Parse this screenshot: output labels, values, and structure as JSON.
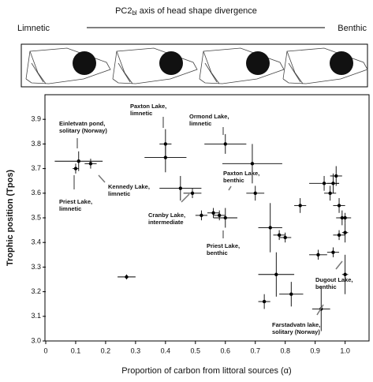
{
  "header": {
    "axis_label_main": "PC2",
    "axis_label_sub": "bl",
    "axis_label_rest": "axis of head shape divergence",
    "left_label": "Limnetic",
    "right_label": "Benthic"
  },
  "chart_data": {
    "type": "scatter",
    "xlabel": "Proportion of carbon from littoral sources (α)",
    "ylabel": "Trophic position (Tpos)",
    "xlim": [
      0,
      1.08
    ],
    "ylim": [
      3.0,
      4.0
    ],
    "xticks": [
      0,
      0.1,
      0.2,
      0.3,
      0.4,
      0.5,
      0.6,
      0.7,
      0.8,
      0.9,
      {
        "value": 1,
        "label": "1.0"
      }
    ],
    "yticks": [
      {
        "value": 3,
        "label": "3.0"
      },
      3.1,
      3.2,
      3.3,
      3.4,
      3.5,
      3.6,
      3.7,
      3.8,
      3.9
    ],
    "color": "#000000",
    "series": [
      {
        "x": [
          0.1,
          0.11,
          0.15,
          0.27,
          0.4,
          0.4,
          0.45,
          0.49,
          0.52,
          0.56,
          0.58,
          0.6,
          0.6,
          0.69,
          0.7,
          0.75,
          0.77,
          0.73,
          0.82,
          0.78,
          0.8,
          0.85,
          0.92,
          0.91,
          0.93,
          0.95,
          0.96,
          0.97,
          0.96,
          0.98,
          0.99,
          1.0,
          1.0,
          1.0,
          0.98
        ],
        "values": [
          3.7,
          3.73,
          3.72,
          3.26,
          3.8,
          3.745,
          3.62,
          3.6,
          3.51,
          3.52,
          3.51,
          3.5,
          3.8,
          3.72,
          3.6,
          3.46,
          3.27,
          3.16,
          3.19,
          3.43,
          3.42,
          3.55,
          3.13,
          3.35,
          3.64,
          3.6,
          3.64,
          3.67,
          3.36,
          3.55,
          3.5,
          3.44,
          3.27,
          3.5,
          3.43
        ],
        "xerr": [
          0.01,
          0.08,
          0.02,
          0.03,
          0.02,
          0.07,
          0.07,
          0.03,
          0.02,
          0.02,
          0.02,
          0.04,
          0.07,
          0.1,
          0.03,
          0.04,
          0.06,
          0.02,
          0.04,
          0.02,
          0.02,
          0.02,
          0.03,
          0.03,
          0.05,
          0.02,
          0.02,
          0.02,
          0.02,
          0.02,
          0.02,
          0.01,
          0.01,
          0.02,
          0.02
        ],
        "yerr": [
          0.02,
          0.04,
          0.02,
          0.01,
          0.06,
          0.06,
          0.05,
          0.02,
          0.02,
          0.02,
          0.02,
          0.04,
          0.04,
          0.08,
          0.03,
          0.1,
          0.09,
          0.03,
          0.05,
          0.02,
          0.02,
          0.03,
          0.09,
          0.02,
          0.03,
          0.03,
          0.04,
          0.04,
          0.02,
          0.03,
          0.03,
          0.04,
          0.08,
          0.02,
          0.02
        ]
      }
    ],
    "annotations": [
      [
        "Einletvatn pond,",
        "solitary (Norway)"
      ],
      [
        "Priest Lake,",
        "limnetic"
      ],
      [
        "Kennedy Lake,",
        "limnetic"
      ],
      [
        "Paxton Lake,",
        "limnetic"
      ],
      [
        "Ormond Lake,",
        "limnetic"
      ],
      [
        "Paxton Lake,",
        "benthic"
      ],
      [
        "Cranby Lake,",
        "intermediate"
      ],
      [
        "Priest Lake,",
        "benthic"
      ],
      [
        "Dugout Lake,",
        "benthic"
      ],
      [
        "Farstadvatn lake,",
        "solitary (Norway)"
      ]
    ]
  }
}
